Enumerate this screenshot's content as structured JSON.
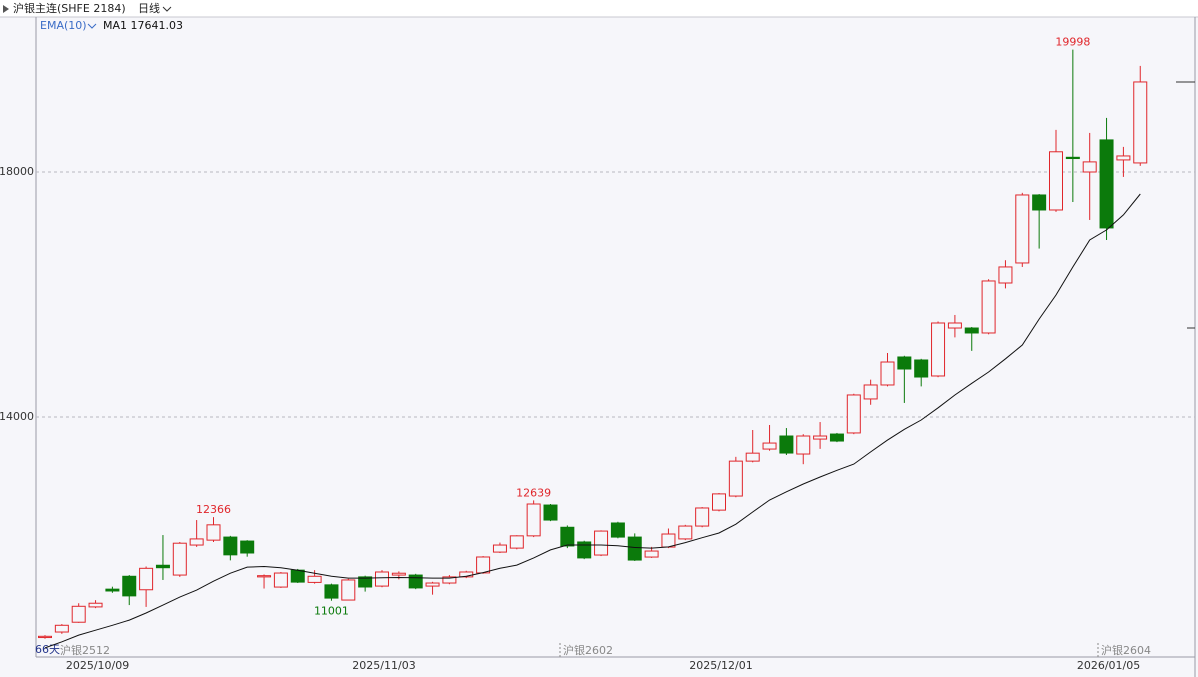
{
  "chart_data": {
    "type": "candlestick",
    "title": "沪银主连(SHFE 2184)",
    "period": "日线",
    "span_label": "66天",
    "contracts": [
      "沪银2512",
      "沪银2602",
      "沪银2604"
    ],
    "categories": [
      null,
      null,
      null,
      "2025/10/09",
      null,
      null,
      null,
      null,
      null,
      null,
      null,
      null,
      null,
      null,
      null,
      null,
      null,
      null,
      null,
      null,
      "2025/11/03",
      null,
      null,
      null,
      null,
      null,
      null,
      null,
      null,
      null,
      null,
      null,
      null,
      null,
      null,
      null,
      null,
      null,
      null,
      null,
      "2025/12/01",
      null,
      null,
      null,
      null,
      null,
      null,
      null,
      null,
      null,
      null,
      null,
      null,
      null,
      null,
      null,
      null,
      null,
      null,
      null,
      null,
      null,
      null,
      "2026/01/05",
      null,
      null
    ],
    "series": [
      {
        "up_color": "#e0262b",
        "down_color": "#0b7a0b",
        "open": [
          10400,
          10490,
          10650,
          10900,
          11190,
          11400,
          11180,
          11580,
          11420,
          11910,
          11990,
          12040,
          11975,
          11390,
          11224,
          11500,
          11300,
          11260,
          11012,
          11390,
          11240,
          11420,
          11420,
          11240,
          11290,
          11390,
          11455,
          11795,
          11860,
          12060,
          12563,
          12200,
          11960,
          11747,
          12270,
          12040,
          11714,
          11877,
          12010,
          12220,
          12480,
          12710,
          13280,
          13477,
          13690,
          13396,
          13640,
          13722,
          13740,
          14295,
          14523,
          14980,
          14931,
          14670,
          15453,
          15453,
          15372,
          16188,
          16515,
          17625,
          17380,
          18240,
          18000,
          18524,
          18197,
          18148
        ],
        "high": [
          10440,
          10620,
          10960,
          11010,
          11230,
          11420,
          11560,
          12073,
          11960,
          12318,
          12366,
          12060,
          11990,
          11430,
          11470,
          11520,
          11500,
          11280,
          11360,
          11410,
          11500,
          11480,
          11440,
          11310,
          11420,
          11490,
          11730,
          11950,
          12070,
          12639,
          12580,
          12230,
          11980,
          12150,
          12290,
          12100,
          11880,
          12180,
          12240,
          12530,
          12760,
          13350,
          13788,
          13870,
          13820,
          13720,
          13918,
          13740,
          14380,
          14610,
          15045,
          15000,
          14950,
          15560,
          15666,
          15470,
          16250,
          16560,
          17660,
          17640,
          18687,
          19998,
          18638,
          18883,
          18410,
          19732
        ],
        "low": [
          10380,
          10460,
          10640,
          10880,
          11130,
          10930,
          10900,
          11340,
          11390,
          11880,
          11960,
          11660,
          11720,
          11200,
          11210,
          11290,
          11280,
          11001,
          11010,
          11150,
          11220,
          11350,
          11190,
          11100,
          11270,
          11370,
          11440,
          11780,
          11840,
          12040,
          12300,
          11860,
          11680,
          11730,
          12020,
          11650,
          11700,
          11860,
          11990,
          12200,
          12460,
          12690,
          13260,
          13450,
          13380,
          13230,
          13480,
          13590,
          13720,
          14200,
          14500,
          14230,
          14500,
          14650,
          15300,
          15080,
          15350,
          16100,
          16450,
          16750,
          17350,
          17510,
          17217,
          16890,
          17920,
          18100
        ],
        "close": [
          10420,
          10600,
          10910,
          10960,
          11160,
          11080,
          11530,
          11540,
          11940,
          12010,
          12240,
          11750,
          11780,
          11410,
          11453,
          11305,
          11400,
          11044,
          11340,
          11225,
          11470,
          11450,
          11210,
          11290,
          11390,
          11470,
          11715,
          11910,
          12060,
          12580,
          12318,
          11895,
          11700,
          12138,
          12040,
          11665,
          11812,
          12090,
          12220,
          12515,
          12745,
          13280,
          13410,
          13575,
          13412,
          13690,
          13690,
          13608,
          14360,
          14523,
          14898,
          14784,
          14653,
          15535,
          15535,
          15372,
          16221,
          16450,
          17625,
          17380,
          18330,
          18220,
          18165,
          17087,
          18262,
          19470
        ]
      }
    ],
    "indicator": {
      "name": "EMA(10)",
      "label": "MA1",
      "color": "#111111",
      "values": [
        10230,
        10330,
        10440,
        10520,
        10600,
        10685,
        10800,
        10930,
        11060,
        11175,
        11320,
        11450,
        11550,
        11560,
        11540,
        11500,
        11450,
        11400,
        11370,
        11370,
        11375,
        11380,
        11375,
        11370,
        11370,
        11400,
        11460,
        11530,
        11583,
        11700,
        11830,
        11910,
        11910,
        11910,
        11900,
        11870,
        11860,
        11880,
        11950,
        12030,
        12106,
        12250,
        12450,
        12645,
        12780,
        12906,
        13020,
        13130,
        13232,
        13430,
        13624,
        13800,
        13951,
        14150,
        14359,
        14550,
        14735,
        14950,
        15176,
        15600,
        15992,
        16450,
        16890,
        17054,
        17300,
        17641.03
      ]
    },
    "ylim": [
      10110,
      20808
    ],
    "yticks": [
      14000,
      18000
    ],
    "grid": true
  }
}
